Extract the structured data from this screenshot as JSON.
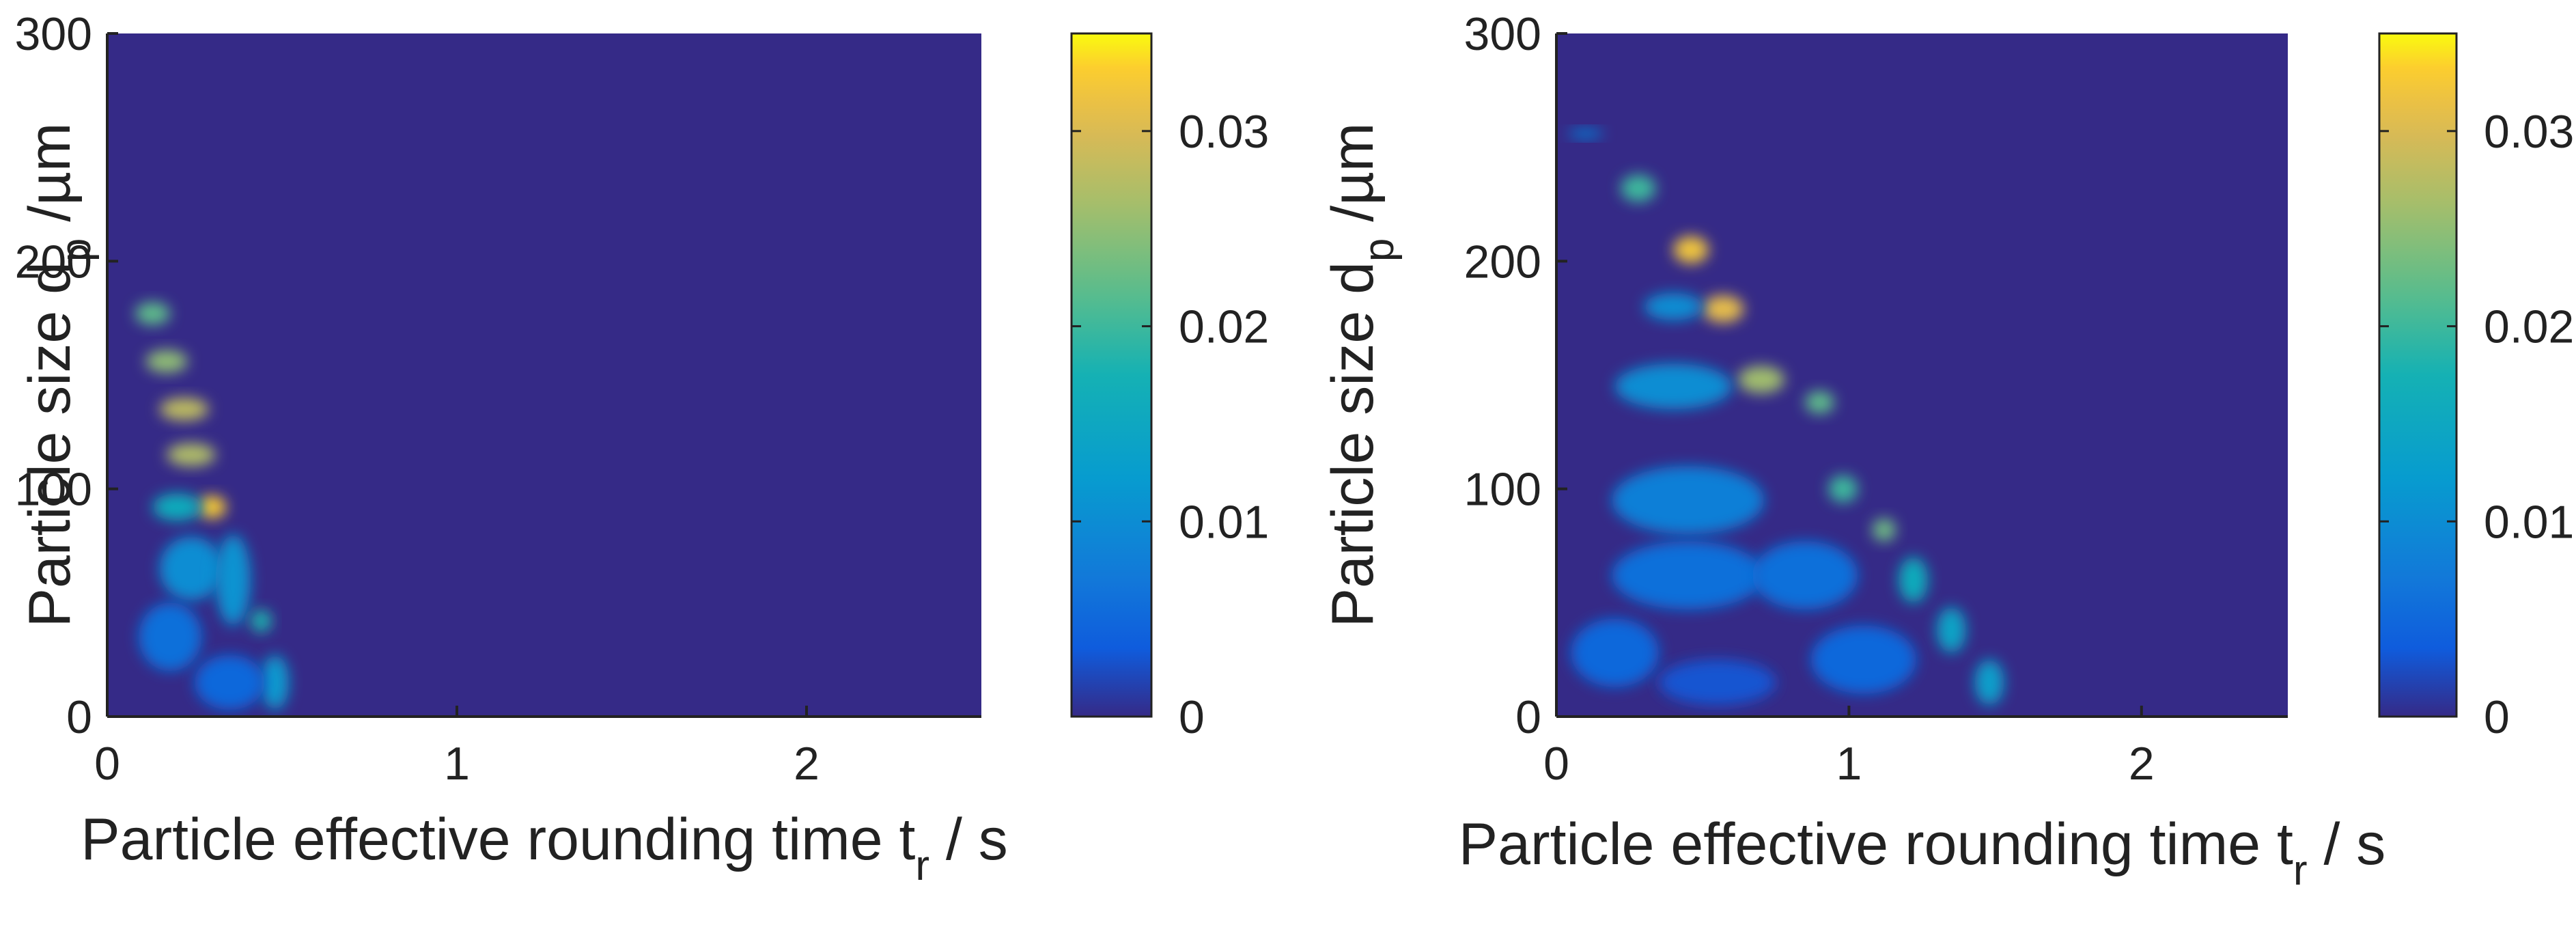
{
  "chart_data": [
    {
      "type": "heatmap",
      "title": "",
      "xlabel": {
        "main": "Particle effective rounding time t",
        "sub": "r",
        "unit": " / s"
      },
      "ylabel": {
        "main": "Particle size d",
        "sub": "p",
        "unit": " /µm"
      },
      "xlim": [
        0,
        2.5
      ],
      "ylim": [
        0,
        300
      ],
      "xticks": [
        0,
        1,
        2
      ],
      "xtick_labels": [
        "0",
        "1",
        "2"
      ],
      "yticks": [
        0,
        100,
        200,
        300
      ],
      "ytick_labels": [
        "0",
        "100",
        "200",
        "300"
      ],
      "colorbar": {
        "range": [
          0,
          0.035
        ],
        "ticks": [
          0,
          0.01,
          0.02,
          0.03
        ],
        "tick_labels": [
          "0",
          "0.01",
          "0.02",
          "0.03"
        ],
        "colormap": "parula"
      },
      "background_value": 0,
      "features": [
        {
          "x": 0.13,
          "y": 177,
          "sx": 0.05,
          "sy": 5,
          "value": 0.022
        },
        {
          "x": 0.17,
          "y": 156,
          "sx": 0.06,
          "sy": 5,
          "value": 0.025
        },
        {
          "x": 0.22,
          "y": 135,
          "sx": 0.07,
          "sy": 5,
          "value": 0.028
        },
        {
          "x": 0.24,
          "y": 115,
          "sx": 0.07,
          "sy": 5,
          "value": 0.027
        },
        {
          "x": 0.3,
          "y": 92,
          "sx": 0.04,
          "sy": 5,
          "value": 0.033
        },
        {
          "x": 0.2,
          "y": 92,
          "sx": 0.07,
          "sy": 6,
          "value": 0.016
        },
        {
          "x": 0.24,
          "y": 65,
          "sx": 0.09,
          "sy": 14,
          "value": 0.01
        },
        {
          "x": 0.18,
          "y": 35,
          "sx": 0.09,
          "sy": 15,
          "value": 0.006
        },
        {
          "x": 0.36,
          "y": 60,
          "sx": 0.05,
          "sy": 20,
          "value": 0.011
        },
        {
          "x": 0.44,
          "y": 42,
          "sx": 0.03,
          "sy": 5,
          "value": 0.018
        },
        {
          "x": 0.48,
          "y": 15,
          "sx": 0.04,
          "sy": 12,
          "value": 0.012
        },
        {
          "x": 0.35,
          "y": 15,
          "sx": 0.1,
          "sy": 12,
          "value": 0.005
        }
      ]
    },
    {
      "type": "heatmap",
      "title": "",
      "xlabel": {
        "main": "Particle effective rounding time t",
        "sub": "r",
        "unit": " / s"
      },
      "ylabel": {
        "main": "Particle size d",
        "sub": "p",
        "unit": " /µm"
      },
      "xlim": [
        0,
        2.5
      ],
      "ylim": [
        0,
        300
      ],
      "xticks": [
        0,
        1,
        2
      ],
      "xtick_labels": [
        "0",
        "1",
        "2"
      ],
      "yticks": [
        0,
        100,
        200,
        300
      ],
      "ytick_labels": [
        "0",
        "100",
        "200",
        "300"
      ],
      "colorbar": {
        "range": [
          0,
          0.035
        ],
        "ticks": [
          0,
          0.01,
          0.02,
          0.03
        ],
        "tick_labels": [
          "0",
          "0.01",
          "0.02",
          "0.03"
        ],
        "colormap": "parula"
      },
      "background_value": 0,
      "features": [
        {
          "x": 0.1,
          "y": 256,
          "sx": 0.06,
          "sy": 2,
          "value": 0.008
        },
        {
          "x": 0.28,
          "y": 232,
          "sx": 0.06,
          "sy": 6,
          "value": 0.02
        },
        {
          "x": 0.46,
          "y": 205,
          "sx": 0.06,
          "sy": 6,
          "value": 0.032
        },
        {
          "x": 0.57,
          "y": 179,
          "sx": 0.07,
          "sy": 6,
          "value": 0.031
        },
        {
          "x": 0.4,
          "y": 180,
          "sx": 0.1,
          "sy": 6,
          "value": 0.01
        },
        {
          "x": 0.7,
          "y": 148,
          "sx": 0.08,
          "sy": 6,
          "value": 0.026
        },
        {
          "x": 0.9,
          "y": 138,
          "sx": 0.05,
          "sy": 5,
          "value": 0.022
        },
        {
          "x": 0.4,
          "y": 145,
          "sx": 0.2,
          "sy": 10,
          "value": 0.01
        },
        {
          "x": 0.45,
          "y": 95,
          "sx": 0.26,
          "sy": 15,
          "value": 0.008
        },
        {
          "x": 0.98,
          "y": 100,
          "sx": 0.05,
          "sy": 6,
          "value": 0.02
        },
        {
          "x": 1.12,
          "y": 82,
          "sx": 0.04,
          "sy": 5,
          "value": 0.023
        },
        {
          "x": 1.22,
          "y": 60,
          "sx": 0.05,
          "sy": 10,
          "value": 0.016
        },
        {
          "x": 1.35,
          "y": 38,
          "sx": 0.05,
          "sy": 10,
          "value": 0.014
        },
        {
          "x": 1.48,
          "y": 15,
          "sx": 0.05,
          "sy": 10,
          "value": 0.013
        },
        {
          "x": 0.45,
          "y": 62,
          "sx": 0.26,
          "sy": 15,
          "value": 0.006
        },
        {
          "x": 0.85,
          "y": 62,
          "sx": 0.18,
          "sy": 15,
          "value": 0.006
        },
        {
          "x": 0.2,
          "y": 28,
          "sx": 0.15,
          "sy": 15,
          "value": 0.005
        },
        {
          "x": 0.55,
          "y": 15,
          "sx": 0.2,
          "sy": 10,
          "value": 0.003
        },
        {
          "x": 1.05,
          "y": 25,
          "sx": 0.18,
          "sy": 15,
          "value": 0.005
        }
      ]
    }
  ]
}
